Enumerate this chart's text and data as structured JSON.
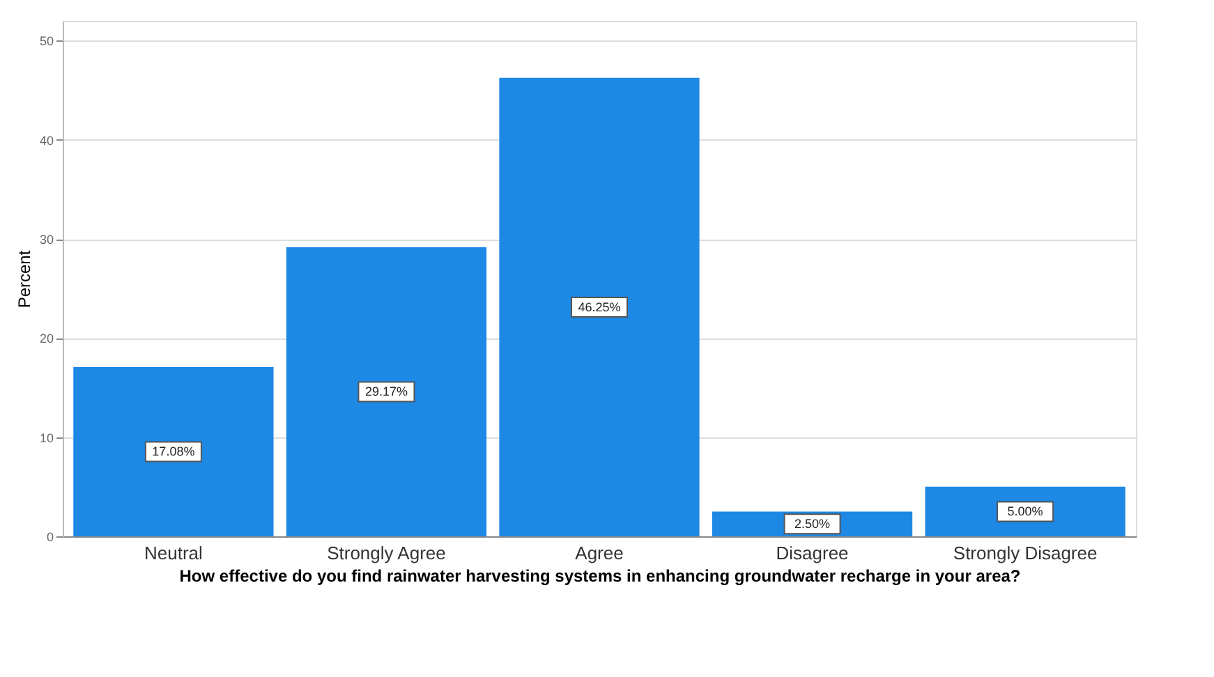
{
  "chart_data": {
    "type": "bar",
    "xlabel": "How effective do you find rainwater harvesting systems in enhancing groundwater recharge in your area?",
    "ylabel": "Percent",
    "categories": [
      "Neutral",
      "Strongly Agree",
      "Agree",
      "Disagree",
      "Strongly Disagree"
    ],
    "values": [
      17.08,
      29.17,
      46.25,
      2.5,
      5.0
    ],
    "value_labels": [
      "17.08%",
      "29.17%",
      "46.25%",
      "2.50%",
      "5.00%"
    ],
    "color": "#1e88e5",
    "ylim": [
      0,
      52
    ],
    "yticks": [
      0,
      10,
      20,
      30,
      40,
      50
    ],
    "grid": "y"
  }
}
